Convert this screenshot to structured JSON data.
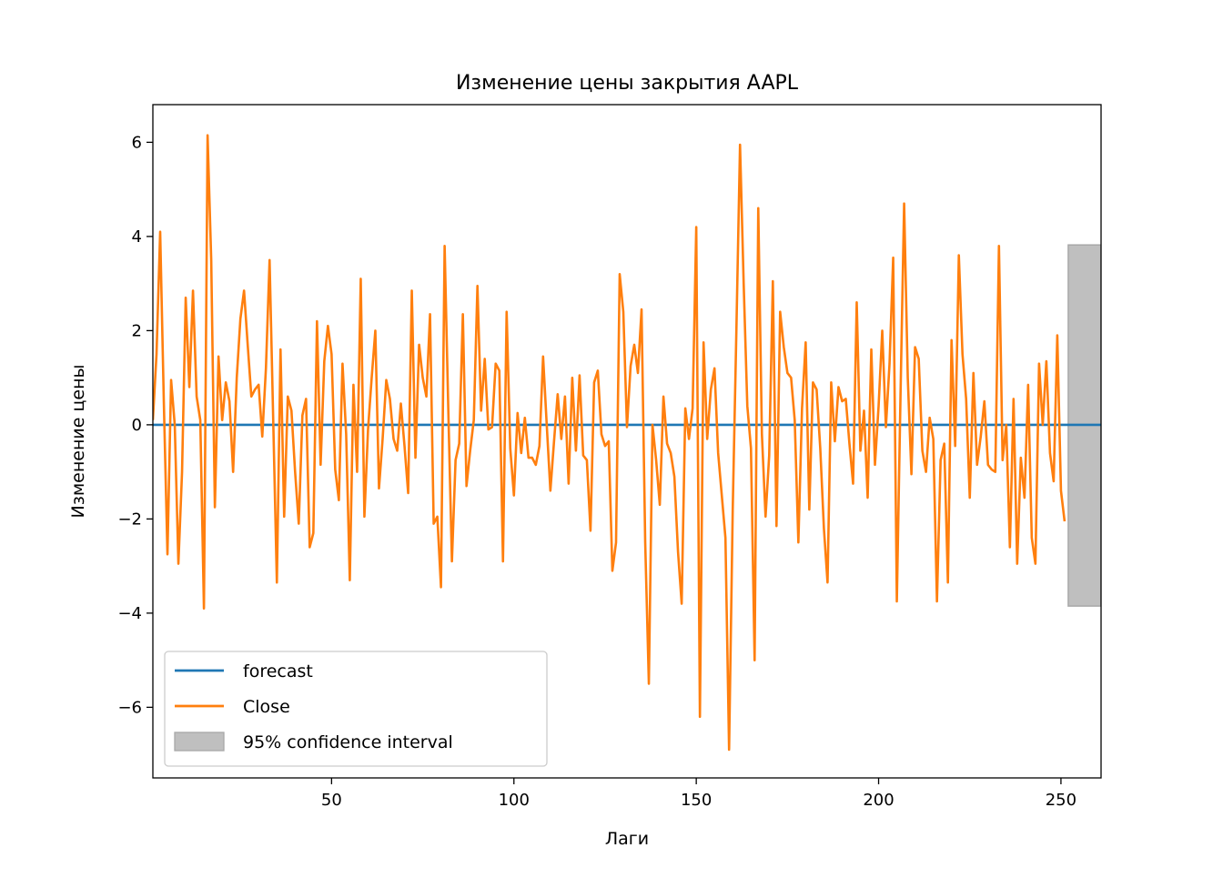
{
  "chart_data": {
    "type": "line",
    "title": "Изменение цены закрытия AAPL",
    "xlabel": "Лаги",
    "ylabel": "Изменение цены",
    "xlim": [
      1,
      261
    ],
    "ylim": [
      -7.5,
      6.8
    ],
    "xticks": [
      50,
      100,
      150,
      200,
      250
    ],
    "yticks": [
      -6,
      -4,
      -2,
      0,
      2,
      4,
      6
    ],
    "ytick_labels": [
      "−6",
      "−4",
      "−2",
      "0",
      "2",
      "4",
      "6"
    ],
    "grid": false,
    "legend_position": "lower-left",
    "legend": [
      {
        "label": "forecast",
        "kind": "line",
        "color": "#1f77b4"
      },
      {
        "label": "Close",
        "kind": "line",
        "color": "#ff7f0e"
      },
      {
        "label": "95% confidence interval",
        "kind": "patch",
        "color": "#bfbfbf"
      }
    ],
    "series": [
      {
        "name": "Close",
        "color": "#ff7f0e",
        "x_start": 1,
        "values": [
          0.1,
          1.5,
          4.1,
          0.5,
          -2.75,
          0.95,
          0.0,
          -2.95,
          -1.0,
          2.7,
          0.8,
          2.85,
          0.6,
          0.1,
          -3.9,
          6.15,
          3.5,
          -1.75,
          1.45,
          0.1,
          0.9,
          0.5,
          -1.0,
          1.0,
          2.25,
          2.85,
          1.7,
          0.6,
          0.75,
          0.85,
          -0.25,
          1.2,
          3.5,
          0.1,
          -3.35,
          1.6,
          -1.95,
          0.6,
          0.3,
          -1.0,
          -2.1,
          0.2,
          0.55,
          -2.6,
          -2.3,
          2.2,
          -0.85,
          1.35,
          2.1,
          1.5,
          -0.95,
          -1.6,
          1.3,
          -0.2,
          -3.3,
          0.85,
          -1.0,
          3.1,
          -1.95,
          -0.1,
          1.0,
          2.0,
          -1.35,
          -0.3,
          0.95,
          0.55,
          -0.3,
          -0.55,
          0.45,
          -0.45,
          -1.45,
          2.85,
          -0.7,
          1.7,
          1.0,
          0.6,
          2.35,
          -2.1,
          -1.95,
          -3.45,
          3.8,
          0.35,
          -2.9,
          -0.75,
          -0.4,
          2.35,
          -1.3,
          -0.55,
          0.1,
          2.95,
          0.3,
          1.4,
          -0.1,
          -0.05,
          1.3,
          1.15,
          -2.9,
          2.4,
          -0.5,
          -1.5,
          0.25,
          -0.6,
          0.15,
          -0.7,
          -0.7,
          -0.85,
          -0.45,
          1.45,
          0.0,
          -1.4,
          -0.35,
          0.65,
          -0.3,
          0.6,
          -1.25,
          1.0,
          -0.55,
          1.05,
          -0.65,
          -0.75,
          -2.25,
          0.9,
          1.15,
          -0.2,
          -0.45,
          -0.35,
          -3.1,
          -2.5,
          3.2,
          2.4,
          -0.05,
          1.25,
          1.7,
          1.1,
          2.45,
          -2.5,
          -5.5,
          0.0,
          -0.75,
          -1.7,
          0.6,
          -0.4,
          -0.6,
          -1.1,
          -2.7,
          -3.8,
          0.35,
          -0.3,
          0.35,
          4.2,
          -6.2,
          1.75,
          -0.3,
          0.75,
          1.2,
          -0.6,
          -1.5,
          -2.4,
          -6.9,
          -1.8,
          2.0,
          5.95,
          3.0,
          0.4,
          -0.5,
          -5.0,
          4.6,
          -0.2,
          -1.95,
          -0.65,
          3.05,
          -2.15,
          2.4,
          1.65,
          1.1,
          1.0,
          0.1,
          -2.5,
          0.35,
          1.75,
          -1.8,
          0.9,
          0.75,
          -0.5,
          -2.2,
          -3.35,
          0.9,
          -0.35,
          0.8,
          0.5,
          0.55,
          -0.4,
          -1.25,
          2.6,
          -0.55,
          0.3,
          -1.55,
          1.6,
          -0.85,
          0.4,
          2.0,
          -0.05,
          1.3,
          3.55,
          -3.75,
          0.6,
          4.7,
          1.0,
          -1.05,
          1.65,
          1.4,
          -0.55,
          -1.0,
          0.15,
          -0.3,
          -3.75,
          -0.75,
          -0.4,
          -3.35,
          1.8,
          -0.45,
          3.6,
          1.5,
          0.55,
          -1.55,
          1.1,
          -0.85,
          -0.25,
          0.5,
          -0.85,
          -0.95,
          -1.0,
          3.8,
          -0.75,
          0.0,
          -2.6,
          0.55,
          -2.95,
          -0.7,
          -1.55,
          0.85,
          -2.4,
          -2.95,
          1.3,
          0.0,
          1.35,
          -0.6,
          -1.2,
          1.9,
          -1.4,
          -2.05
        ]
      },
      {
        "name": "forecast",
        "color": "#1f77b4",
        "x": [
          1,
          261
        ],
        "values": [
          0,
          0
        ]
      }
    ],
    "confidence_interval": {
      "label": "95% confidence interval",
      "x_range": [
        252,
        261
      ],
      "lower": -3.85,
      "upper": 3.82,
      "color": "#bfbfbf"
    }
  }
}
